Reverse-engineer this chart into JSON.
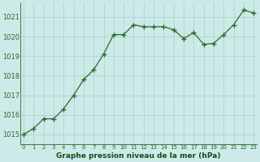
{
  "x": [
    0,
    1,
    2,
    3,
    4,
    5,
    6,
    7,
    8,
    9,
    10,
    11,
    12,
    13,
    14,
    15,
    16,
    17,
    18,
    19,
    20,
    21,
    22,
    23
  ],
  "y": [
    1015.0,
    1015.3,
    1015.8,
    1015.8,
    1016.3,
    1017.0,
    1017.8,
    1018.3,
    1019.1,
    1020.1,
    1020.1,
    1020.6,
    1020.5,
    1020.5,
    1020.5,
    1020.35,
    1019.9,
    1020.2,
    1019.6,
    1019.65,
    1020.1,
    1020.6,
    1021.35,
    1021.2
  ],
  "line_color": "#2d6a2d",
  "marker": "+",
  "marker_size": 4,
  "marker_lw": 1.0,
  "line_width": 0.9,
  "bg_color": "#cceae7",
  "grid_color": "#aacfcc",
  "xlabel": "Graphe pression niveau de la mer (hPa)",
  "xlabel_color": "#1a4a1a",
  "tick_color": "#2d6a2d",
  "ylim": [
    1014.5,
    1021.75
  ],
  "yticks": [
    1015,
    1016,
    1017,
    1018,
    1019,
    1020,
    1021
  ],
  "xlim": [
    -0.3,
    23.3
  ],
  "xticks": [
    0,
    1,
    2,
    3,
    4,
    5,
    6,
    7,
    8,
    9,
    10,
    11,
    12,
    13,
    14,
    15,
    16,
    17,
    18,
    19,
    20,
    21,
    22,
    23
  ],
  "ytick_fontsize": 6.0,
  "xtick_fontsize": 5.0,
  "xlabel_fontsize": 6.5,
  "xlabel_fontweight": "bold"
}
